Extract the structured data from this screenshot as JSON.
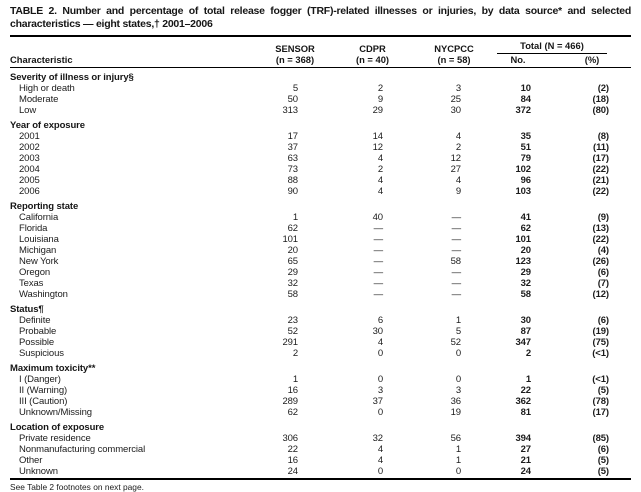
{
  "title": "TABLE 2. Number and percentage of total release fogger (TRF)-related illnesses or injuries, by data source* and selected characteristics — eight states,† 2001–2006",
  "header": {
    "characteristic": "Characteristic",
    "sources": [
      {
        "name": "SENSOR",
        "n": "(n = 368)"
      },
      {
        "name": "CDPR",
        "n": "(n = 40)"
      },
      {
        "name": "NYCPCC",
        "n": "(n = 58)"
      }
    ],
    "total_label": "Total (N = 466)",
    "total_no": "No.",
    "total_pct": "(%)"
  },
  "table": {
    "sections": [
      {
        "label": "Severity of illness or injury§",
        "rows": [
          {
            "label": "High or death",
            "values": [
              "5",
              "2",
              "3",
              "10",
              "(2)"
            ]
          },
          {
            "label": "Moderate",
            "values": [
              "50",
              "9",
              "25",
              "84",
              "(18)"
            ]
          },
          {
            "label": "Low",
            "values": [
              "313",
              "29",
              "30",
              "372",
              "(80)"
            ]
          }
        ]
      },
      {
        "label": "Year of exposure",
        "rows": [
          {
            "label": "2001",
            "values": [
              "17",
              "14",
              "4",
              "35",
              "(8)"
            ]
          },
          {
            "label": "2002",
            "values": [
              "37",
              "12",
              "2",
              "51",
              "(11)"
            ]
          },
          {
            "label": "2003",
            "values": [
              "63",
              "4",
              "12",
              "79",
              "(17)"
            ]
          },
          {
            "label": "2004",
            "values": [
              "73",
              "2",
              "27",
              "102",
              "(22)"
            ]
          },
          {
            "label": "2005",
            "values": [
              "88",
              "4",
              "4",
              "96",
              "(21)"
            ]
          },
          {
            "label": "2006",
            "values": [
              "90",
              "4",
              "9",
              "103",
              "(22)"
            ]
          }
        ]
      },
      {
        "label": "Reporting state",
        "rows": [
          {
            "label": "California",
            "values": [
              "1",
              "40",
              "—",
              "41",
              "(9)"
            ]
          },
          {
            "label": "Florida",
            "values": [
              "62",
              "—",
              "—",
              "62",
              "(13)"
            ]
          },
          {
            "label": "Louisiana",
            "values": [
              "101",
              "—",
              "—",
              "101",
              "(22)"
            ]
          },
          {
            "label": "Michigan",
            "values": [
              "20",
              "—",
              "—",
              "20",
              "(4)"
            ]
          },
          {
            "label": "New York",
            "values": [
              "65",
              "—",
              "58",
              "123",
              "(26)"
            ]
          },
          {
            "label": "Oregon",
            "values": [
              "29",
              "—",
              "—",
              "29",
              "(6)"
            ]
          },
          {
            "label": "Texas",
            "values": [
              "32",
              "—",
              "—",
              "32",
              "(7)"
            ]
          },
          {
            "label": "Washington",
            "values": [
              "58",
              "—",
              "—",
              "58",
              "(12)"
            ]
          }
        ]
      },
      {
        "label": "Status¶",
        "rows": [
          {
            "label": "Definite",
            "values": [
              "23",
              "6",
              "1",
              "30",
              "(6)"
            ]
          },
          {
            "label": "Probable",
            "values": [
              "52",
              "30",
              "5",
              "87",
              "(19)"
            ]
          },
          {
            "label": "Possible",
            "values": [
              "291",
              "4",
              "52",
              "347",
              "(75)"
            ]
          },
          {
            "label": "Suspicious",
            "values": [
              "2",
              "0",
              "0",
              "2",
              "(<1)"
            ]
          }
        ]
      },
      {
        "label": "Maximum toxicity**",
        "rows": [
          {
            "label": "I (Danger)",
            "values": [
              "1",
              "0",
              "0",
              "1",
              "(<1)"
            ]
          },
          {
            "label": "II (Warning)",
            "values": [
              "16",
              "3",
              "3",
              "22",
              "(5)"
            ]
          },
          {
            "label": "III (Caution)",
            "values": [
              "289",
              "37",
              "36",
              "362",
              "(78)"
            ]
          },
          {
            "label": "Unknown/Missing",
            "values": [
              "62",
              "0",
              "19",
              "81",
              "(17)"
            ]
          }
        ]
      },
      {
        "label": "Location of exposure",
        "rows": [
          {
            "label": "Private residence",
            "values": [
              "306",
              "32",
              "56",
              "394",
              "(85)"
            ]
          },
          {
            "label": "Nonmanufacturing commercial",
            "values": [
              "22",
              "4",
              "1",
              "27",
              "(6)"
            ]
          },
          {
            "label": "Other",
            "values": [
              "16",
              "4",
              "1",
              "21",
              "(5)"
            ]
          },
          {
            "label": "Unknown",
            "values": [
              "24",
              "0",
              "0",
              "24",
              "(5)"
            ]
          }
        ]
      }
    ]
  },
  "footnote": "See Table 2 footnotes on next page.",
  "colors": {
    "text": "#1c1c1c",
    "rule": "#000000",
    "background": "#ffffff"
  }
}
